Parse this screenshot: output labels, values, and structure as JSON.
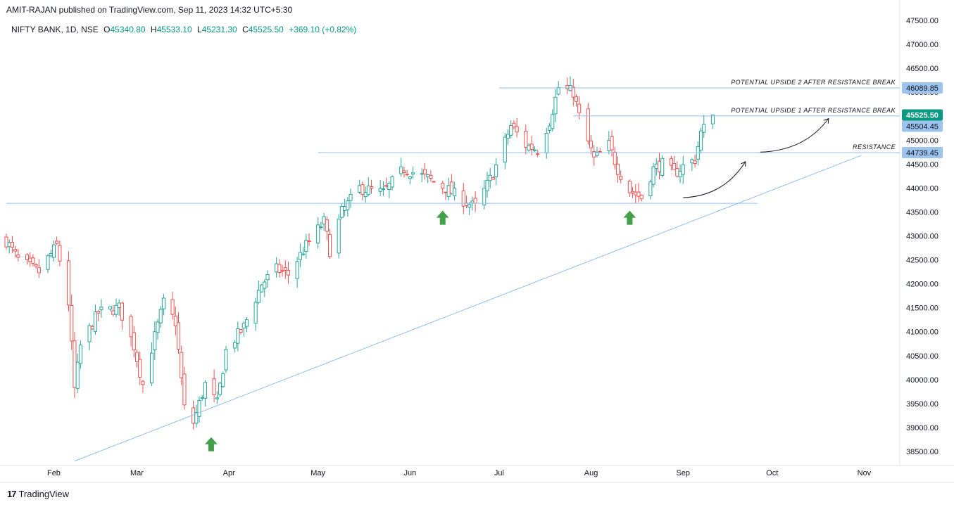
{
  "header": {
    "published": "AMIT-RAJAN published on TradingView.com, Sep 11, 2023 14:32 UTC+5:30"
  },
  "symbol": {
    "name": "NIFTY BANK, 1D, NSE",
    "open_label": "O",
    "open": "45340.80",
    "high_label": "H",
    "high": "45533.10",
    "low_label": "L",
    "low": "45231.30",
    "close_label": "C",
    "close": "45525.50",
    "change": "+369.10 (+0.82%)"
  },
  "brand": {
    "logo_text": "17",
    "name": "TradingView"
  },
  "colors": {
    "up": "#26a69a",
    "down": "#ef5350",
    "line": "#90bfec",
    "price_tag_green": "#089981",
    "price_tag_blue": "#9cc4ee",
    "arrow": "#43a047"
  },
  "chart_data": {
    "type": "candlestick",
    "ylim": [
      38200,
      47600
    ],
    "y_ticks": [
      38500,
      39000,
      39500,
      40000,
      40500,
      41000,
      41500,
      42000,
      42500,
      43000,
      43500,
      44000,
      44500,
      45000,
      45500,
      46000,
      46500,
      47000,
      47500
    ],
    "y_tick_labels": [
      "38500.00",
      "39000.00",
      "39500.00",
      "40000.00",
      "40500.00",
      "41000.00",
      "41500.00",
      "42000.00",
      "42500.00",
      "43000.00",
      "43500.00",
      "44000.00",
      "44500.00",
      "45000.00",
      "45500.00",
      "46000.00",
      "46500.00",
      "47000.00",
      "47500.00"
    ],
    "x_range": [
      "2023-01-16",
      "2023-11-13"
    ],
    "x_ticks": [
      {
        "date": "2023-02-01",
        "label": "Feb"
      },
      {
        "date": "2023-03-01",
        "label": "Mar"
      },
      {
        "date": "2023-04-01",
        "label": "Apr"
      },
      {
        "date": "2023-05-01",
        "label": "May"
      },
      {
        "date": "2023-06-01",
        "label": "Jun"
      },
      {
        "date": "2023-07-01",
        "label": "Jul"
      },
      {
        "date": "2023-08-01",
        "label": "Aug"
      },
      {
        "date": "2023-09-01",
        "label": "Sep"
      },
      {
        "date": "2023-10-01",
        "label": "Oct"
      },
      {
        "date": "2023-11-01",
        "label": "Nov"
      }
    ],
    "anchors": [
      {
        "date": "2023-01-16",
        "close": 42900
      },
      {
        "date": "2023-01-20",
        "close": 42500
      },
      {
        "date": "2023-01-27",
        "close": 42250
      },
      {
        "date": "2023-02-02",
        "close": 42800
      },
      {
        "date": "2023-02-06",
        "close": 41600
      },
      {
        "date": "2023-02-08",
        "close": 39800
      },
      {
        "date": "2023-02-10",
        "close": 40700
      },
      {
        "date": "2023-02-16",
        "close": 41400
      },
      {
        "date": "2023-02-23",
        "close": 41500
      },
      {
        "date": "2023-02-28",
        "close": 40700
      },
      {
        "date": "2023-03-03",
        "close": 39900
      },
      {
        "date": "2023-03-07",
        "close": 40900
      },
      {
        "date": "2023-03-10",
        "close": 41600
      },
      {
        "date": "2023-03-14",
        "close": 41200
      },
      {
        "date": "2023-03-17",
        "close": 39400
      },
      {
        "date": "2023-03-20",
        "close": 39100
      },
      {
        "date": "2023-03-24",
        "close": 39900
      },
      {
        "date": "2023-03-28",
        "close": 39500
      },
      {
        "date": "2023-03-31",
        "close": 40600
      },
      {
        "date": "2023-04-06",
        "close": 41100
      },
      {
        "date": "2023-04-12",
        "close": 42000
      },
      {
        "date": "2023-04-17",
        "close": 42300
      },
      {
        "date": "2023-04-21",
        "close": 42200
      },
      {
        "date": "2023-04-27",
        "close": 42800
      },
      {
        "date": "2023-05-03",
        "close": 43300
      },
      {
        "date": "2023-05-05",
        "close": 42700
      },
      {
        "date": "2023-05-09",
        "close": 43500
      },
      {
        "date": "2023-05-15",
        "close": 44000
      },
      {
        "date": "2023-05-23",
        "close": 43900
      },
      {
        "date": "2023-05-30",
        "close": 44400
      },
      {
        "date": "2023-06-07",
        "close": 44200
      },
      {
        "date": "2023-06-13",
        "close": 44000
      },
      {
        "date": "2023-06-20",
        "close": 43700
      },
      {
        "date": "2023-06-23",
        "close": 43600
      },
      {
        "date": "2023-06-29",
        "close": 44300
      },
      {
        "date": "2023-07-05",
        "close": 45300
      },
      {
        "date": "2023-07-10",
        "close": 44900
      },
      {
        "date": "2023-07-14",
        "close": 44800
      },
      {
        "date": "2023-07-18",
        "close": 45400
      },
      {
        "date": "2023-07-21",
        "close": 46100
      },
      {
        "date": "2023-07-26",
        "close": 46000
      },
      {
        "date": "2023-07-28",
        "close": 45500
      },
      {
        "date": "2023-08-02",
        "close": 44600
      },
      {
        "date": "2023-08-07",
        "close": 44900
      },
      {
        "date": "2023-08-10",
        "close": 44400
      },
      {
        "date": "2023-08-14",
        "close": 43950
      },
      {
        "date": "2023-08-18",
        "close": 43800
      },
      {
        "date": "2023-08-22",
        "close": 44400
      },
      {
        "date": "2023-08-25",
        "close": 44500
      },
      {
        "date": "2023-08-29",
        "close": 44300
      },
      {
        "date": "2023-09-01",
        "close": 44450
      },
      {
        "date": "2023-09-05",
        "close": 44600
      },
      {
        "date": "2023-09-07",
        "close": 45150
      },
      {
        "date": "2023-09-11",
        "open": 45340.8,
        "high": 45533.1,
        "low": 45231.3,
        "close": 45525.5
      }
    ],
    "horizontal_lines": [
      {
        "price": 46089.85,
        "from": "2023-07-01",
        "to": "2023-11-13"
      },
      {
        "price": 45504.45,
        "from": "2023-07-26",
        "to": "2023-11-13"
      },
      {
        "price": 44739.45,
        "from": "2023-05-01",
        "to": "2023-11-13"
      },
      {
        "price": 43680,
        "from": "2023-01-16",
        "to": "2023-09-26"
      }
    ],
    "trend_line": {
      "from_date": "2023-02-08",
      "from_price": 38300,
      "to_date": "2023-10-31",
      "to_price": 44680
    },
    "annotations": [
      {
        "text": "POTENTIAL UPSIDE 2 AFTER RESISTANCE BREAK",
        "price": 46089.85
      },
      {
        "text": "POTENTIAL UPSIDE 1 AFTER RESISTANCE BREAK",
        "price": 45504.45
      },
      {
        "text": "RESISTANCE",
        "price": 44739.45
      }
    ],
    "price_tags": [
      {
        "value": "46089.85",
        "style": "blue"
      },
      {
        "value": "45525.50",
        "style": "green"
      },
      {
        "value": "45504.45",
        "style": "blue"
      },
      {
        "value": "44739.45",
        "style": "blue"
      }
    ],
    "up_arrows": [
      {
        "date": "2023-03-26",
        "price": 38650
      },
      {
        "date": "2023-06-12",
        "price": 43380
      },
      {
        "date": "2023-08-14",
        "price": 43380
      }
    ],
    "curved_arrows": [
      {
        "from_date": "2023-09-01",
        "from_price": 43800,
        "to_date": "2023-09-22",
        "to_price": 44550
      },
      {
        "from_date": "2023-09-27",
        "from_price": 44750,
        "to_date": "2023-10-20",
        "to_price": 45450
      }
    ]
  }
}
